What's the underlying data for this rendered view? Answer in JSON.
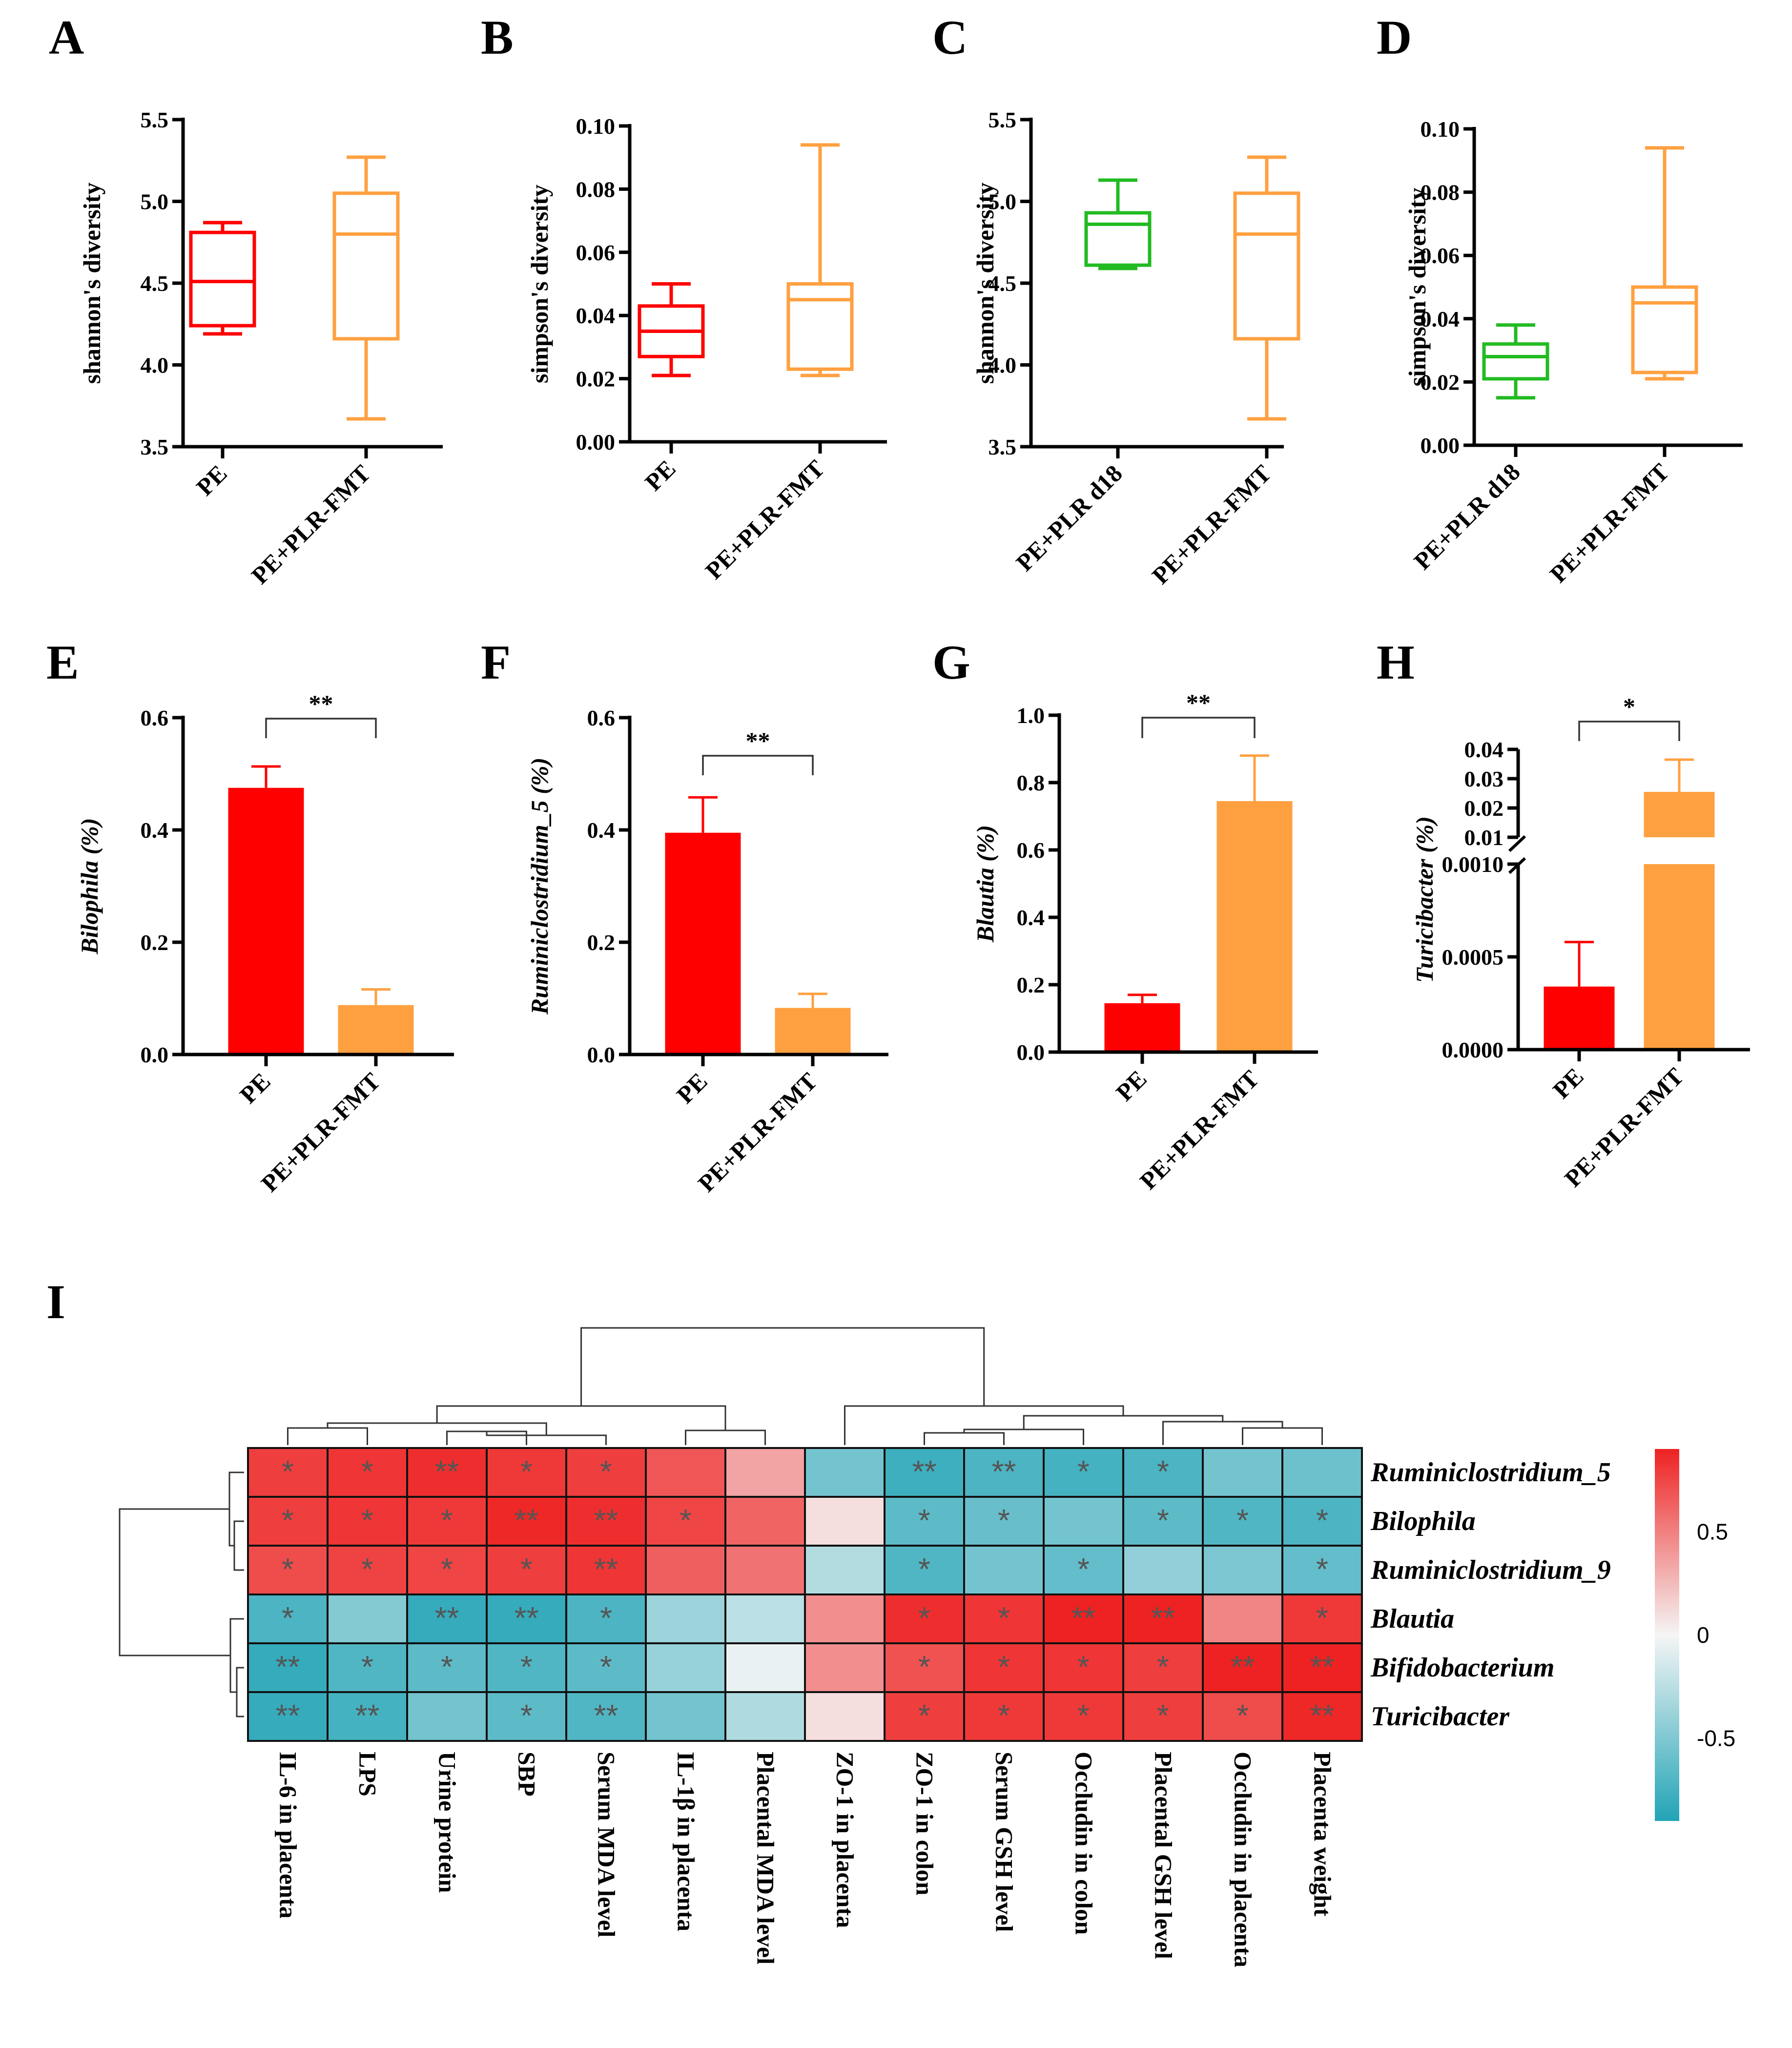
{
  "figure": {
    "background": "#ffffff",
    "axis_color": "#000000"
  },
  "chart_data": [
    {
      "id": "A",
      "panel_label": "A",
      "type": "box",
      "ylabel": "shannon's diversity",
      "ylim": [
        3.5,
        5.5
      ],
      "yticks": [
        3.5,
        4.0,
        4.5,
        5.0,
        5.5
      ],
      "ytick_labels": [
        "3.5",
        "4.0",
        "4.5",
        "5.0",
        "5.5"
      ],
      "categories": [
        "PE",
        "PE+PLR-FMT"
      ],
      "colors": [
        "#ff0000",
        "#ffa040"
      ],
      "boxes": [
        {
          "min": 4.19,
          "q1": 4.24,
          "median": 4.51,
          "q3": 4.81,
          "max": 4.87
        },
        {
          "min": 3.67,
          "q1": 4.16,
          "median": 4.8,
          "q3": 5.05,
          "max": 5.27
        }
      ]
    },
    {
      "id": "B",
      "panel_label": "B",
      "type": "box",
      "ylabel": "simpson's diversity",
      "ylim": [
        0,
        0.1
      ],
      "yticks": [
        0,
        0.02,
        0.04,
        0.06,
        0.08,
        0.1
      ],
      "ytick_labels": [
        "0.00",
        "0.02",
        "0.04",
        "0.06",
        "0.08",
        "0.10"
      ],
      "categories": [
        "PE",
        "PE+PLR-FMT"
      ],
      "colors": [
        "#ff0000",
        "#ffa040"
      ],
      "boxes": [
        {
          "min": 0.021,
          "q1": 0.027,
          "median": 0.035,
          "q3": 0.043,
          "max": 0.05
        },
        {
          "min": 0.021,
          "q1": 0.023,
          "median": 0.045,
          "q3": 0.05,
          "max": 0.094
        }
      ]
    },
    {
      "id": "C",
      "panel_label": "C",
      "type": "box",
      "ylabel": "shannon's diversity",
      "ylim": [
        3.5,
        5.5
      ],
      "yticks": [
        3.5,
        4.0,
        4.5,
        5.0,
        5.5
      ],
      "ytick_labels": [
        "3.5",
        "4.0",
        "4.5",
        "5.0",
        "5.5"
      ],
      "categories": [
        "PE+PLR d18",
        "PE+PLR-FMT"
      ],
      "colors": [
        "#22bb22",
        "#ffa040"
      ],
      "boxes": [
        {
          "min": 4.59,
          "q1": 4.61,
          "median": 4.86,
          "q3": 4.93,
          "max": 5.13
        },
        {
          "min": 3.67,
          "q1": 4.16,
          "median": 4.8,
          "q3": 5.05,
          "max": 5.27
        }
      ]
    },
    {
      "id": "D",
      "panel_label": "D",
      "type": "box",
      "ylabel": "simpson's diversity",
      "ylim": [
        0,
        0.1
      ],
      "yticks": [
        0,
        0.02,
        0.04,
        0.06,
        0.08,
        0.1
      ],
      "ytick_labels": [
        "0.00",
        "0.02",
        "0.04",
        "0.06",
        "0.08",
        "0.10"
      ],
      "categories": [
        "PE+PLR d18",
        "PE+PLR-FMT"
      ],
      "colors": [
        "#22bb22",
        "#ffa040"
      ],
      "boxes": [
        {
          "min": 0.015,
          "q1": 0.021,
          "median": 0.028,
          "q3": 0.032,
          "max": 0.038
        },
        {
          "min": 0.021,
          "q1": 0.023,
          "median": 0.045,
          "q3": 0.05,
          "max": 0.094
        }
      ]
    },
    {
      "id": "E",
      "panel_label": "E",
      "type": "bar",
      "ylabel": "Bilophila (%)",
      "ylabel_italic_part": "Bilophila",
      "ylim": [
        0,
        0.6
      ],
      "yticks": [
        0,
        0.2,
        0.4,
        0.6
      ],
      "ytick_labels": [
        "0.0",
        "0.2",
        "0.4",
        "0.6"
      ],
      "categories": [
        "PE",
        "PE+PLR-FMT"
      ],
      "colors": [
        "#ff0000",
        "#ffa040"
      ],
      "values": [
        0.475,
        0.088
      ],
      "errors": [
        0.038,
        0.028
      ],
      "significance": "**"
    },
    {
      "id": "F",
      "panel_label": "F",
      "type": "bar",
      "ylabel": "Ruminiclostridium_5 (%)",
      "ylabel_italic_part": "Ruminiclostridium_5",
      "ylim": [
        0,
        0.6
      ],
      "yticks": [
        0,
        0.2,
        0.4,
        0.6
      ],
      "ytick_labels": [
        "0.0",
        "0.2",
        "0.4",
        "0.6"
      ],
      "categories": [
        "PE",
        "PE+PLR-FMT"
      ],
      "colors": [
        "#ff0000",
        "#ffa040"
      ],
      "values": [
        0.395,
        0.083
      ],
      "errors": [
        0.063,
        0.025
      ],
      "significance": "**"
    },
    {
      "id": "G",
      "panel_label": "G",
      "type": "bar",
      "ylabel": "Blautia (%)",
      "ylabel_italic_part": "Blautia",
      "ylim": [
        0,
        1.0
      ],
      "yticks": [
        0,
        0.2,
        0.4,
        0.6,
        0.8,
        1.0
      ],
      "ytick_labels": [
        "0.0",
        "0.2",
        "0.4",
        "0.6",
        "0.8",
        "1.0"
      ],
      "categories": [
        "PE",
        "PE+PLR-FMT"
      ],
      "colors": [
        "#ff0000",
        "#ffa040"
      ],
      "values": [
        0.145,
        0.745
      ],
      "errors": [
        0.025,
        0.135
      ],
      "significance": "**"
    },
    {
      "id": "H",
      "panel_label": "H",
      "type": "bar",
      "ylabel": "Turicibacter (%)",
      "ylabel_italic_part": "Turicibacter",
      "broken_axis": true,
      "segments": [
        {
          "ylim": [
            0,
            0.001
          ],
          "yticks": [
            0,
            0.0005,
            0.001
          ],
          "ytick_labels": [
            "0.0000",
            "0.0005",
            "0.0010"
          ]
        },
        {
          "ylim": [
            0.01,
            0.04
          ],
          "yticks": [
            0.01,
            0.02,
            0.03,
            0.04
          ],
          "ytick_labels": [
            "0.01",
            "0.02",
            "0.03",
            "0.04"
          ]
        }
      ],
      "categories": [
        "PE",
        "PE+PLR-FMT"
      ],
      "colors": [
        "#ff0000",
        "#ffa040"
      ],
      "values": [
        0.00034,
        0.0255
      ],
      "errors": [
        0.00024,
        0.011
      ],
      "significance": "*"
    },
    {
      "id": "I",
      "panel_label": "I",
      "type": "heatmap",
      "rows": [
        "Ruminiclostridium_5",
        "Bilophila",
        "Ruminiclostridium_9",
        "Blautia",
        "Bifidobacterium",
        "Turicibacter"
      ],
      "columns": [
        "IL-6 in placenta",
        "LPS",
        "Urine protein",
        "SBP",
        "Serum MDA level",
        "IL-1β in placenta",
        "Placental MDA level",
        "ZO-1 in placenta",
        "ZO-1 in colon",
        "Serum GSH level",
        "Occludin in colon",
        "Placental GSH level",
        "Occludin in placenta",
        "Placenta weight"
      ],
      "values": [
        [
          0.78,
          0.82,
          0.85,
          0.8,
          0.78,
          0.68,
          0.35,
          -0.55,
          -0.78,
          -0.72,
          -0.75,
          -0.72,
          -0.55,
          -0.58
        ],
        [
          0.78,
          0.82,
          0.8,
          0.88,
          0.85,
          0.75,
          0.62,
          0.1,
          -0.65,
          -0.6,
          -0.55,
          -0.65,
          -0.7,
          -0.72
        ],
        [
          0.72,
          0.76,
          0.75,
          0.78,
          0.82,
          0.64,
          0.56,
          -0.28,
          -0.7,
          -0.55,
          -0.62,
          -0.42,
          -0.52,
          -0.62
        ],
        [
          -0.72,
          -0.48,
          -0.82,
          -0.82,
          -0.72,
          -0.38,
          -0.25,
          0.44,
          0.85,
          0.82,
          0.9,
          0.93,
          0.48,
          0.8
        ],
        [
          -0.82,
          -0.7,
          -0.65,
          -0.7,
          -0.65,
          -0.4,
          -0.05,
          0.44,
          0.7,
          0.82,
          0.82,
          0.78,
          0.93,
          0.92
        ],
        [
          -0.82,
          -0.75,
          -0.55,
          -0.65,
          -0.7,
          -0.55,
          -0.3,
          0.1,
          0.78,
          0.8,
          0.8,
          0.78,
          0.72,
          0.88
        ]
      ],
      "stars": [
        [
          "*",
          "*",
          "**",
          "*",
          "*",
          "",
          "",
          "",
          "**",
          "**",
          "*",
          "*",
          "",
          ""
        ],
        [
          "*",
          "*",
          "*",
          "**",
          "**",
          "*",
          "",
          "",
          "*",
          "*",
          "",
          "*",
          "*",
          "*"
        ],
        [
          "*",
          "*",
          "*",
          "*",
          "**",
          "",
          "",
          "",
          "*",
          "",
          "*",
          "",
          "",
          "*"
        ],
        [
          "*",
          "",
          "**",
          "**",
          "*",
          "",
          "",
          "",
          "*",
          "*",
          "**",
          "**",
          "",
          "*"
        ],
        [
          "**",
          "*",
          "*",
          "*",
          "*",
          "",
          "",
          "",
          "*",
          "*",
          "*",
          "*",
          "**",
          "**"
        ],
        [
          "**",
          "**",
          "",
          "*",
          "**",
          "",
          "",
          "",
          "*",
          "*",
          "*",
          "*",
          "*",
          "**"
        ]
      ],
      "color_scale": {
        "min": -0.9,
        "max": 0.9,
        "low": "#22a4b6",
        "mid": "#f5f5f5",
        "high": "#ee2222"
      },
      "legend_ticks": [
        0.5,
        0,
        -0.5
      ],
      "legend_tick_labels": [
        "0.5",
        "0",
        "-0.5"
      ]
    }
  ]
}
